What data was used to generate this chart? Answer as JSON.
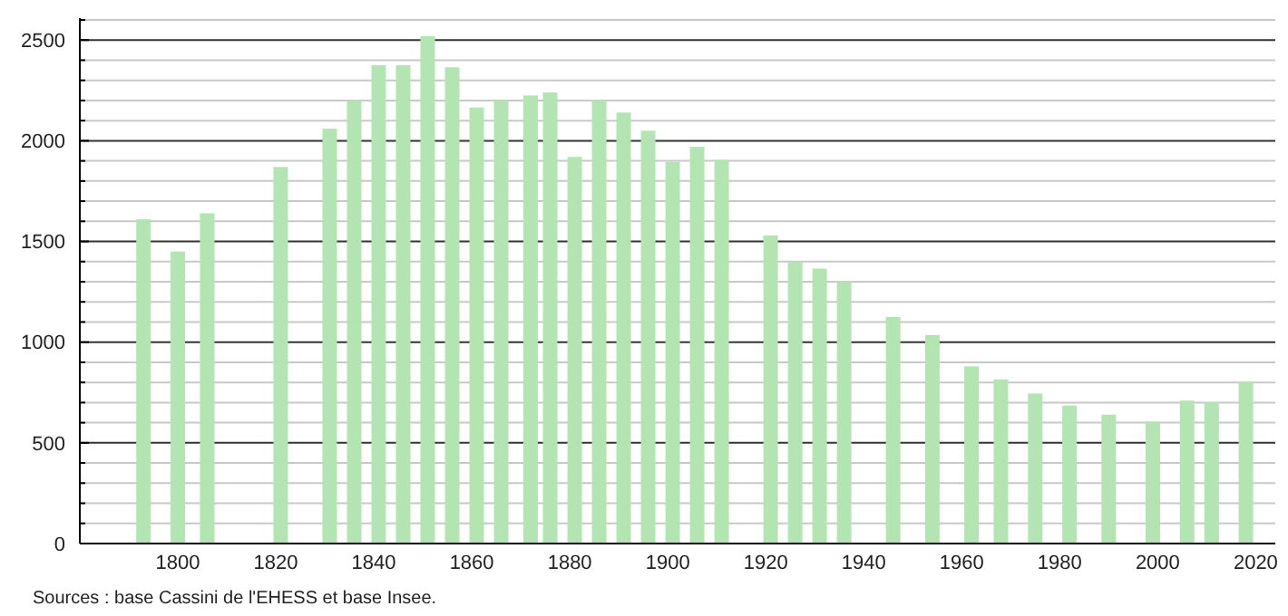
{
  "chart_data": {
    "type": "bar",
    "x": [
      1793,
      1800,
      1806,
      1821,
      1831,
      1836,
      1841,
      1846,
      1851,
      1856,
      1861,
      1866,
      1872,
      1876,
      1881,
      1886,
      1891,
      1896,
      1901,
      1906,
      1911,
      1921,
      1926,
      1931,
      1936,
      1946,
      1954,
      1962,
      1968,
      1975,
      1982,
      1990,
      1999,
      2006,
      2011,
      2018
    ],
    "values": [
      1610,
      1450,
      1640,
      1870,
      2060,
      2200,
      2375,
      2375,
      2520,
      2365,
      2165,
      2200,
      2225,
      2240,
      1920,
      2200,
      2140,
      2050,
      1895,
      1970,
      1905,
      1530,
      1400,
      1365,
      1300,
      1125,
      1035,
      880,
      815,
      745,
      685,
      640,
      605,
      710,
      700,
      805
    ],
    "color": "#b3e5b3",
    "xlim": [
      1780,
      2024
    ],
    "xticks": [
      1800,
      1820,
      1840,
      1860,
      1880,
      1900,
      1920,
      1940,
      1960,
      1980,
      2000,
      2020
    ],
    "ylim": [
      0,
      2600
    ],
    "yticks": [
      0,
      {
        "value": 100,
        "label": null
      },
      {
        "value": 200,
        "label": null
      },
      {
        "value": 300,
        "label": null
      },
      {
        "value": 400,
        "label": null
      },
      500,
      {
        "value": 600,
        "label": null
      },
      {
        "value": 700,
        "label": null
      },
      {
        "value": 800,
        "label": null
      },
      {
        "value": 900,
        "label": null
      },
      1000,
      {
        "value": 1100,
        "label": null
      },
      {
        "value": 1200,
        "label": null
      },
      {
        "value": 1300,
        "label": null
      },
      {
        "value": 1400,
        "label": null
      },
      1500,
      {
        "value": 1600,
        "label": null
      },
      {
        "value": 1700,
        "label": null
      },
      {
        "value": 1800,
        "label": null
      },
      {
        "value": 1900,
        "label": null
      },
      2000,
      {
        "value": 2100,
        "label": null
      },
      {
        "value": 2200,
        "label": null
      },
      {
        "value": 2300,
        "label": null
      },
      {
        "value": 2400,
        "label": null
      },
      2500,
      {
        "value": 2600,
        "label": null
      }
    ],
    "grid": "y",
    "annotations": [
      "Sources : base Cassini de l'EHESS et base Insee."
    ]
  }
}
